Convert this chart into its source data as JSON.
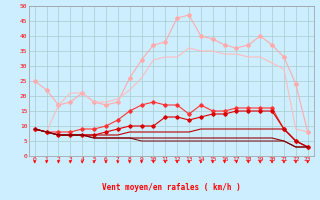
{
  "x": [
    0,
    1,
    2,
    3,
    4,
    5,
    6,
    7,
    8,
    9,
    10,
    11,
    12,
    13,
    14,
    15,
    16,
    17,
    18,
    19,
    20,
    21,
    22,
    23
  ],
  "series": [
    {
      "y": [
        25,
        22,
        17,
        18,
        21,
        18,
        17,
        18,
        26,
        32,
        37,
        38,
        46,
        47,
        40,
        39,
        37,
        36,
        37,
        40,
        37,
        33,
        24,
        8
      ],
      "color": "#ffaaaa",
      "marker": "D",
      "lw": 0.8,
      "ms": 2.0
    },
    {
      "y": [
        9,
        8,
        17,
        21,
        21,
        18,
        18,
        19,
        22,
        26,
        32,
        33,
        33,
        36,
        35,
        35,
        34,
        34,
        33,
        33,
        31,
        29,
        9,
        8
      ],
      "color": "#ffbbbb",
      "marker": null,
      "lw": 0.8,
      "ms": 0
    },
    {
      "y": [
        9,
        8,
        8,
        8,
        9,
        9,
        10,
        12,
        15,
        17,
        18,
        17,
        17,
        14,
        17,
        15,
        15,
        16,
        16,
        16,
        16,
        9,
        5,
        3
      ],
      "color": "#ff3333",
      "marker": "D",
      "lw": 0.8,
      "ms": 1.8
    },
    {
      "y": [
        9,
        8,
        7,
        7,
        7,
        7,
        8,
        9,
        10,
        10,
        10,
        13,
        13,
        12,
        13,
        14,
        14,
        15,
        15,
        15,
        15,
        9,
        5,
        3
      ],
      "color": "#dd0000",
      "marker": "D",
      "lw": 0.8,
      "ms": 1.8
    },
    {
      "y": [
        9,
        8,
        7,
        7,
        7,
        7,
        7,
        7,
        8,
        8,
        8,
        8,
        8,
        8,
        9,
        9,
        9,
        9,
        9,
        9,
        9,
        9,
        5,
        3
      ],
      "color": "#bb0000",
      "marker": null,
      "lw": 0.8,
      "ms": 0
    },
    {
      "y": [
        9,
        8,
        7,
        7,
        7,
        6,
        6,
        6,
        6,
        6,
        6,
        6,
        6,
        6,
        6,
        6,
        6,
        6,
        6,
        6,
        6,
        5,
        3,
        3
      ],
      "color": "#990000",
      "marker": null,
      "lw": 0.8,
      "ms": 0
    },
    {
      "y": [
        9,
        8,
        7,
        7,
        7,
        6,
        6,
        6,
        6,
        5,
        5,
        5,
        5,
        5,
        5,
        5,
        5,
        5,
        5,
        5,
        5,
        5,
        3,
        3
      ],
      "color": "#770000",
      "marker": null,
      "lw": 0.7,
      "ms": 0
    }
  ],
  "xlabel": "Vent moyen/en rafales ( km/h )",
  "xlim": [
    -0.5,
    23.5
  ],
  "ylim": [
    0,
    50
  ],
  "yticks": [
    0,
    5,
    10,
    15,
    20,
    25,
    30,
    35,
    40,
    45,
    50
  ],
  "xticks": [
    0,
    1,
    2,
    3,
    4,
    5,
    6,
    7,
    8,
    9,
    10,
    11,
    12,
    13,
    14,
    15,
    16,
    17,
    18,
    19,
    20,
    21,
    22,
    23
  ],
  "bg_color": "#cceeff",
  "grid_color": "#aacccc",
  "tick_color": "#ff0000",
  "label_color": "#ff0000"
}
